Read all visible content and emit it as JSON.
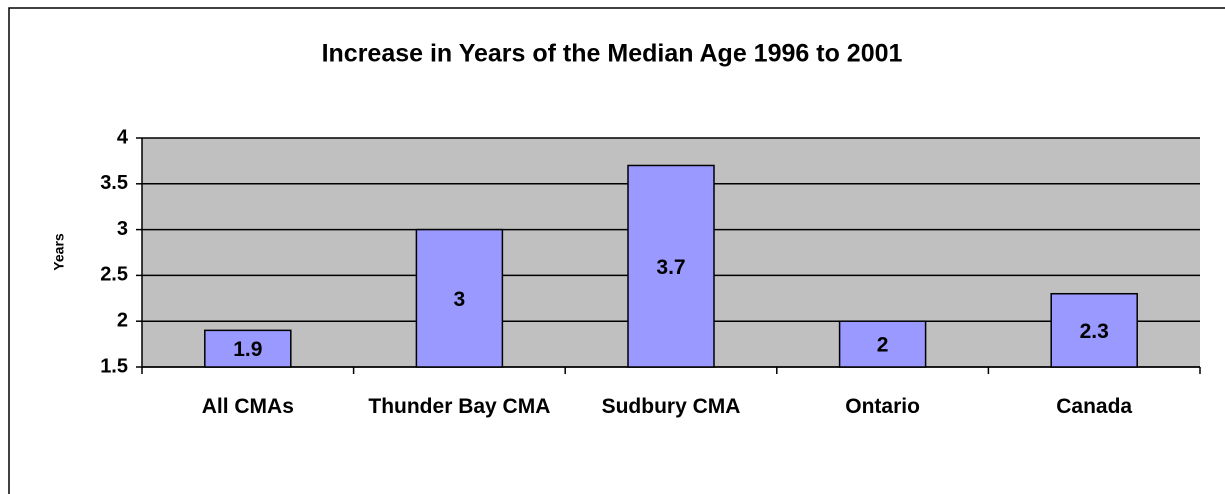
{
  "chart_data": {
    "type": "bar",
    "title": "Increase in Years of the Median Age 1996 to 2001",
    "y_label": "Years",
    "categories": [
      "All CMAs",
      "Thunder Bay CMA",
      "Sudbury CMA",
      "Ontario",
      "Canada"
    ],
    "values": [
      1.9,
      3,
      3.7,
      2,
      2.3
    ],
    "color": "#9999ff",
    "ylim": [
      1.5,
      4
    ],
    "yticks": [
      1.5,
      2,
      2.5,
      3,
      3.5,
      4
    ],
    "grid": true
  }
}
